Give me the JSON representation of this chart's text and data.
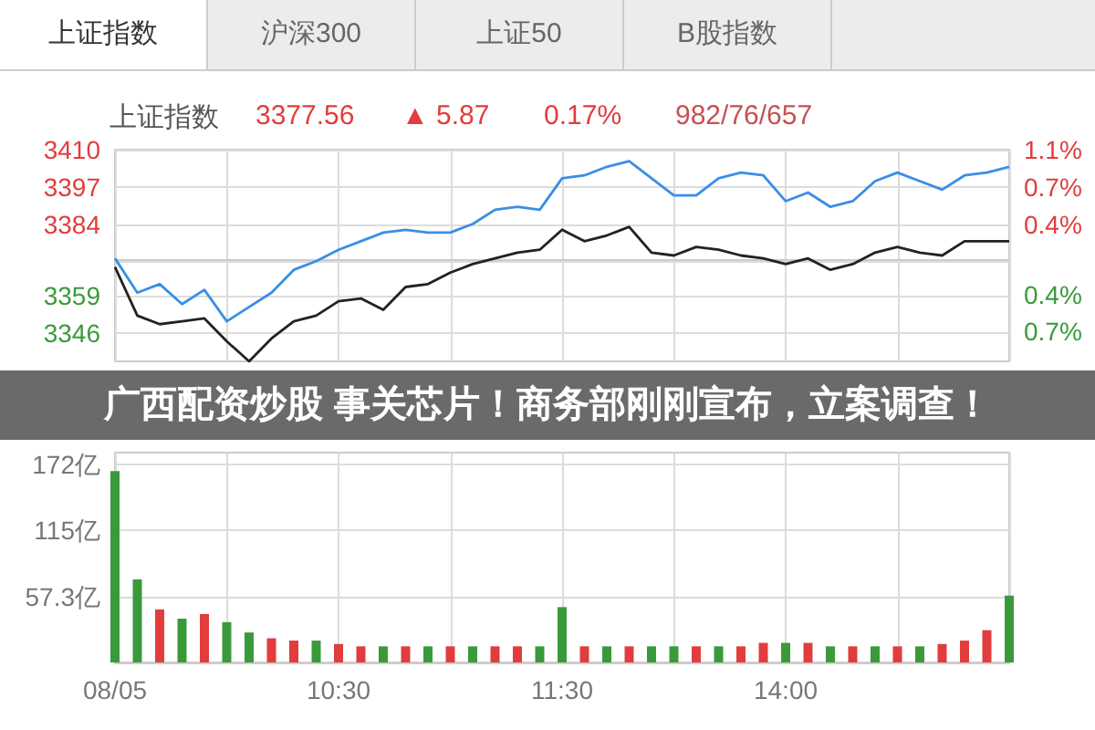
{
  "chart_data": [
    {
      "type": "line",
      "annotations": [
        "上证指数",
        "沪深300",
        "上证50",
        "B股指数",
        "上证指数",
        "3377.56",
        "▲ 5.87",
        "0.17%",
        "982/76/657",
        "广西配资炒股 事关芯片！商务部刚刚宣布，立案调查！"
      ],
      "categories": [
        null,
        null,
        null,
        null,
        null,
        null,
        null,
        null,
        null,
        null,
        null,
        null,
        null,
        null,
        null,
        null,
        null,
        null,
        null,
        null,
        null,
        null,
        null,
        null,
        null,
        null,
        null,
        null,
        null,
        null,
        null,
        null,
        null,
        null,
        null,
        null,
        null,
        null,
        null,
        null,
        null
      ],
      "series": [
        {
          "color": "#3a8ee6",
          "values": [
            3372,
            3360,
            3363,
            3356,
            3361,
            3350,
            3355,
            3360,
            3368,
            3371,
            3375,
            3378,
            3381,
            3382,
            3381,
            3381,
            3384,
            3389,
            3390,
            3389,
            3400,
            3401,
            3404,
            3406,
            3400,
            3394,
            3394,
            3400,
            3402,
            3401,
            3392,
            3395,
            3390,
            3392,
            3399,
            3402,
            3399,
            3396,
            3401,
            3402,
            3404
          ]
        },
        {
          "color": "#222222",
          "values": [
            3369,
            3352,
            3349,
            3350,
            3351,
            3343,
            3336,
            3344,
            3350,
            3352,
            3357,
            3358,
            3354,
            3362,
            3363,
            3367,
            3370,
            3372,
            3374,
            3375,
            3382,
            3378,
            3380,
            3383,
            3374,
            3373,
            3376,
            3375,
            3373,
            3372,
            3370,
            3372,
            3368,
            3370,
            3374,
            3376,
            3374,
            3373,
            3378,
            3378,
            3378
          ]
        }
      ],
      "ylim": [
        3336,
        3410
      ],
      "yticks": [
        3410,
        3397,
        3384,
        {
          "value": 3371,
          "label": null
        },
        3359,
        3346
      ],
      "y2lim": [
        -1.06,
        1.14
      ],
      "y2ticks": [
        {
          "value": 1.14,
          "label": "1.1%"
        },
        {
          "value": 0.75,
          "label": "0.7%"
        },
        {
          "value": 0.36,
          "label": "0.4%"
        },
        {
          "value": -0.37,
          "label": "0.4%"
        },
        {
          "value": -0.75,
          "label": "0.7%"
        }
      ],
      "grid": true,
      "marker": "none",
      "tick_labels": "y"
    },
    {
      "type": "bar",
      "categories": [
        "08/05",
        null,
        null,
        null,
        null,
        null,
        null,
        null,
        null,
        null,
        "10:30",
        null,
        null,
        null,
        null,
        null,
        null,
        null,
        null,
        null,
        "11:30",
        null,
        null,
        null,
        null,
        null,
        null,
        null,
        null,
        null,
        "14:00",
        null,
        null,
        null,
        null,
        null,
        null,
        null,
        null,
        null,
        null
      ],
      "values": [
        166,
        72,
        46,
        38,
        42,
        35,
        26,
        21,
        19,
        19,
        16,
        14,
        14,
        14,
        14,
        14,
        14,
        14,
        14,
        14,
        48,
        14,
        14,
        14,
        14,
        14,
        14,
        14,
        14,
        17,
        17,
        17,
        14,
        14,
        14,
        14,
        14,
        16,
        19,
        28,
        58
      ],
      "colors": [
        "#3a9a3a",
        "#3a9a3a",
        "#e23c3c",
        "#3a9a3a",
        "#e23c3c",
        "#3a9a3a",
        "#3a9a3a",
        "#e23c3c",
        "#e23c3c",
        "#3a9a3a",
        "#e23c3c",
        "#e23c3c",
        "#3a9a3a",
        "#e23c3c",
        "#3a9a3a",
        "#e23c3c",
        "#3a9a3a",
        "#e23c3c",
        "#e23c3c",
        "#3a9a3a",
        "#3a9a3a",
        "#e23c3c",
        "#3a9a3a",
        "#e23c3c",
        "#3a9a3a",
        "#3a9a3a",
        "#e23c3c",
        "#3a9a3a",
        "#e23c3c",
        "#e23c3c",
        "#3a9a3a",
        "#e23c3c",
        "#3a9a3a",
        "#e23c3c",
        "#3a9a3a",
        "#e23c3c",
        "#3a9a3a",
        "#e23c3c",
        "#e23c3c",
        "#e23c3c",
        "#3a9a3a"
      ],
      "ylim": [
        0,
        182
      ],
      "yticks": [
        {
          "value": 57.3,
          "label": "57.3亿"
        },
        {
          "value": 115,
          "label": "115亿"
        },
        {
          "value": 172,
          "label": "172亿"
        }
      ],
      "grid": true
    }
  ]
}
